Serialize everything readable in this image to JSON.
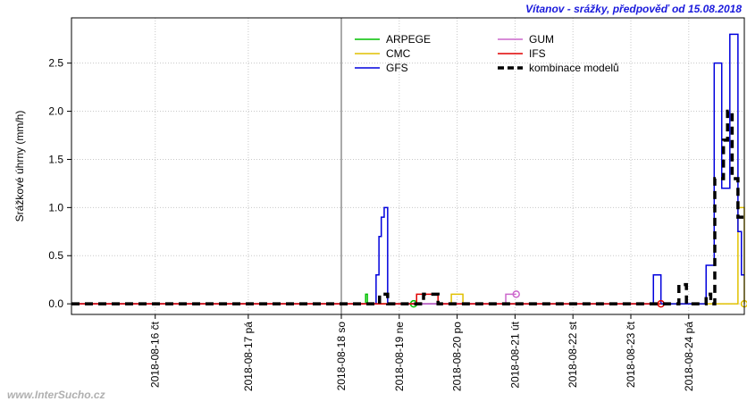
{
  "chart_data": {
    "type": "step",
    "title": "Vítanov - srážky, předpověď od 15.08.2018",
    "ylabel": "Srážkové úhrny (mm/h)",
    "watermark": "www.InterSucho.cz",
    "xlim": [
      15.1,
      24.96
    ],
    "xticks": [
      {
        "value": 16,
        "label": "2018-08-16 čt"
      },
      {
        "value": 17,
        "label": "2018-08-17 pá"
      },
      {
        "value": 18,
        "label": "2018-08-18 so"
      },
      {
        "value": 19,
        "label": "2018-08-19 ne"
      },
      {
        "value": 20,
        "label": "2018-08-20 po"
      },
      {
        "value": 21,
        "label": "2018-08-21 út"
      },
      {
        "value": 22,
        "label": "2018-08-22 st"
      },
      {
        "value": 23,
        "label": "2018-08-23 čt"
      },
      {
        "value": 24,
        "label": "2018-08-24 pá"
      }
    ],
    "forecast_start": 18,
    "ylim": [
      -0.11,
      2.97
    ],
    "yticks": [
      {
        "value": 0,
        "label": "0.0"
      },
      0.5,
      {
        "value": 1,
        "label": "1.0"
      },
      1.5,
      {
        "value": 2,
        "label": "2.0"
      },
      2.5
    ],
    "grid": true,
    "series": [
      {
        "name": "ARPEGE",
        "color": "#00c000",
        "end_marker": true,
        "x": [
          15.1,
          18.42,
          18.45,
          19.25
        ],
        "values": [
          0,
          0.1,
          0,
          0
        ]
      },
      {
        "name": "CMC",
        "color": "#e0c000",
        "end_marker": true,
        "x": [
          15.1,
          19.9,
          20.1,
          24.85,
          24.96
        ],
        "values": [
          0,
          0.1,
          0,
          1.0,
          0
        ]
      },
      {
        "name": "GFS",
        "color": "#0000dd",
        "x": [
          15.1,
          18.6,
          18.65,
          18.69,
          18.74,
          18.8,
          23.39,
          23.52,
          24.3,
          24.44,
          24.57,
          24.71,
          24.85,
          24.91,
          24.96
        ],
        "values": [
          0,
          0.3,
          0.7,
          0.9,
          1.0,
          0,
          0.3,
          0,
          0.4,
          2.5,
          1.2,
          2.8,
          0.75,
          0.3,
          0.3
        ]
      },
      {
        "name": "GUM",
        "color": "#cc66cc",
        "end_marker": true,
        "x": [
          15.1,
          20.84,
          21.02
        ],
        "values": [
          0,
          0.1,
          0.1
        ]
      },
      {
        "name": "IFS",
        "color": "#e00000",
        "end_marker": true,
        "x": [
          15.1,
          19.3,
          19.67,
          23.52
        ],
        "values": [
          0,
          0.1,
          0,
          0
        ]
      },
      {
        "name": "kombinace modelů",
        "color": "#000000",
        "dashed": true,
        "x": [
          15.1,
          18.66,
          18.8,
          19.42,
          19.67,
          23.83,
          23.96,
          24.3,
          24.38,
          24.45,
          24.6,
          24.67,
          24.75,
          24.85,
          24.96
        ],
        "values": [
          0,
          0.1,
          0,
          0.1,
          0,
          0.2,
          0,
          0.1,
          0,
          1.3,
          1.7,
          2.0,
          1.3,
          0.9,
          0.9
        ]
      }
    ]
  }
}
